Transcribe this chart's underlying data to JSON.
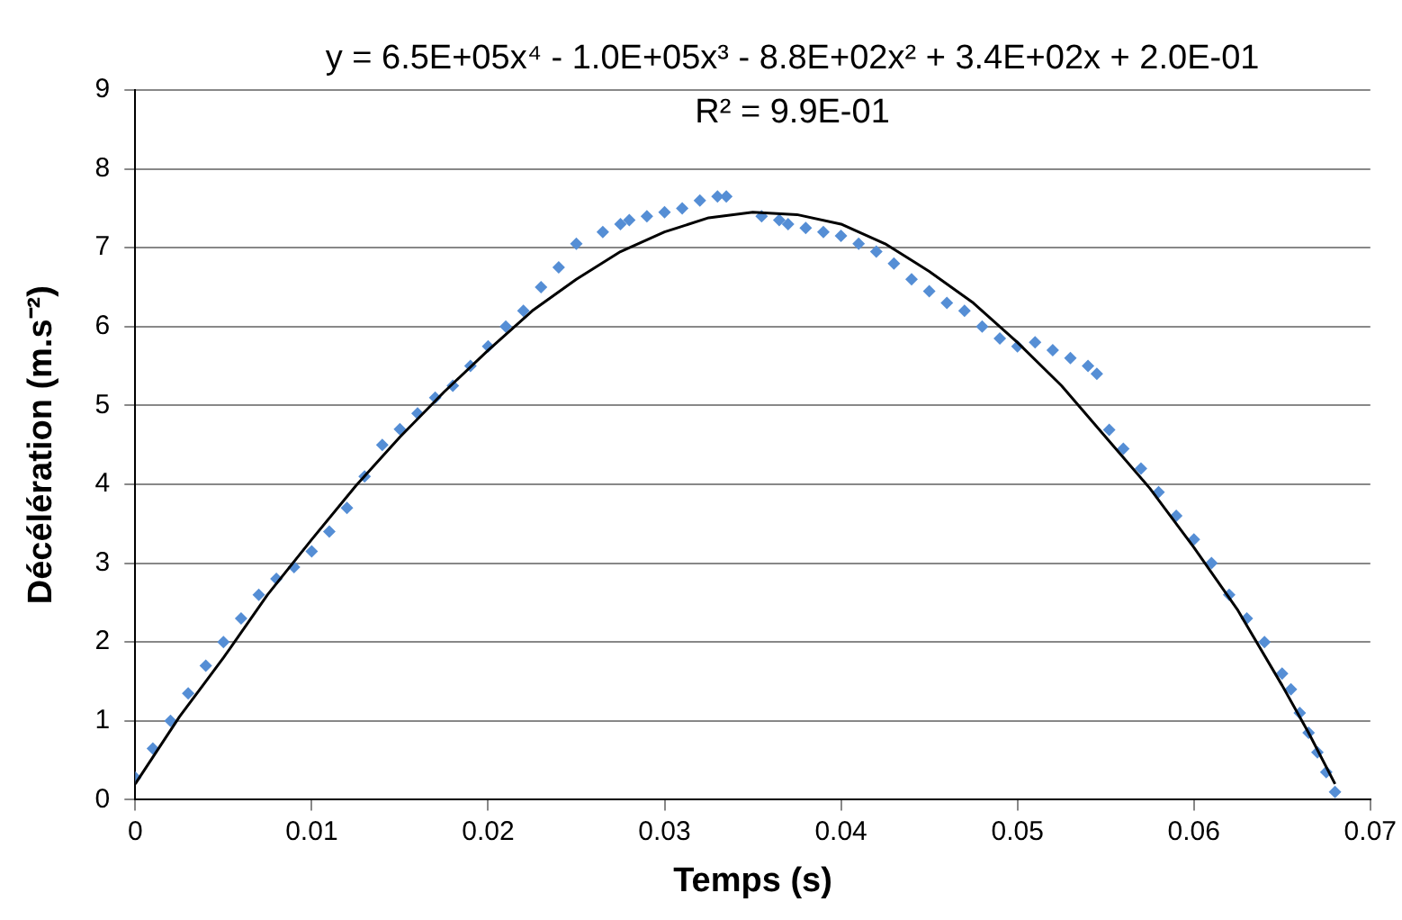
{
  "chart_data": {
    "type": "scatter",
    "xlabel": "Temps (s)",
    "ylabel": "Décélération (m.s⁻²)",
    "annotations": [
      "y = 6.5E+05x⁴ - 1.0E+05x³ - 8.8E+02x² + 3.4E+02x + 2.0E-01",
      "R² = 9.9E-01"
    ],
    "xlim": [
      0,
      0.07
    ],
    "xticks": [
      0,
      0.01,
      0.02,
      0.03,
      0.04,
      0.05,
      0.06,
      0.07
    ],
    "ylim": [
      0,
      9
    ],
    "yticks": [
      0,
      1,
      2,
      3,
      4,
      5,
      6,
      7,
      8,
      9
    ],
    "grid": "y",
    "legend": false,
    "series": [
      {
        "marker": "diamond",
        "color": "#558ed5",
        "x": [
          0,
          0.001,
          0.002,
          0.003,
          0.004,
          0.005,
          0.006,
          0.007,
          0.008,
          0.009,
          0.01,
          0.011,
          0.012,
          0.013,
          0.014,
          0.015,
          0.016,
          0.017,
          0.018,
          0.019,
          0.02,
          0.021,
          0.022,
          0.023,
          0.024,
          0.025,
          0.0265,
          0.0275,
          0.028,
          0.029,
          0.03,
          0.031,
          0.032,
          0.033,
          0.0335,
          0.0355,
          0.0365,
          0.037,
          0.038,
          0.039,
          0.04,
          0.041,
          0.042,
          0.043,
          0.044,
          0.045,
          0.046,
          0.047,
          0.048,
          0.049,
          0.05,
          0.051,
          0.052,
          0.053,
          0.054,
          0.0545,
          0.0552,
          0.056,
          0.057,
          0.058,
          0.059,
          0.06,
          0.061,
          0.062,
          0.063,
          0.064,
          0.065,
          0.0655,
          0.066,
          0.0665,
          0.067,
          0.0675,
          0.068
        ],
        "values": [
          0.28,
          0.65,
          1.0,
          1.35,
          1.7,
          2.0,
          2.3,
          2.6,
          2.8,
          2.95,
          3.15,
          3.4,
          3.7,
          4.1,
          4.5,
          4.7,
          4.9,
          5.1,
          5.25,
          5.5,
          5.75,
          6.0,
          6.2,
          6.5,
          6.75,
          7.05,
          7.2,
          7.3,
          7.35,
          7.4,
          7.45,
          7.5,
          7.6,
          7.65,
          7.65,
          7.4,
          7.35,
          7.3,
          7.25,
          7.2,
          7.15,
          7.05,
          6.95,
          6.8,
          6.6,
          6.45,
          6.3,
          6.2,
          6.0,
          5.85,
          5.75,
          5.8,
          5.7,
          5.6,
          5.5,
          5.4,
          4.69,
          4.45,
          4.2,
          3.9,
          3.6,
          3.3,
          3.0,
          2.6,
          2.3,
          2.0,
          1.6,
          1.4,
          1.1,
          0.85,
          0.6,
          0.35,
          0.1
        ]
      },
      {
        "type": "line",
        "marker": "none",
        "color": "#000000",
        "x": [
          0,
          0.0025,
          0.005,
          0.0075,
          0.01,
          0.0125,
          0.015,
          0.0175,
          0.02,
          0.0225,
          0.025,
          0.0275,
          0.03,
          0.0325,
          0.035,
          0.0375,
          0.04,
          0.0425,
          0.045,
          0.0475,
          0.05,
          0.0525,
          0.055,
          0.0575,
          0.06,
          0.0625,
          0.065,
          0.0665,
          0.068
        ],
        "values": [
          0.2,
          1.05,
          1.8,
          2.6,
          3.3,
          3.98,
          4.6,
          5.17,
          5.7,
          6.2,
          6.6,
          6.95,
          7.2,
          7.38,
          7.45,
          7.42,
          7.3,
          7.05,
          6.7,
          6.3,
          5.8,
          5.25,
          4.6,
          3.95,
          3.2,
          2.4,
          1.45,
          0.85,
          0.2
        ]
      }
    ]
  }
}
